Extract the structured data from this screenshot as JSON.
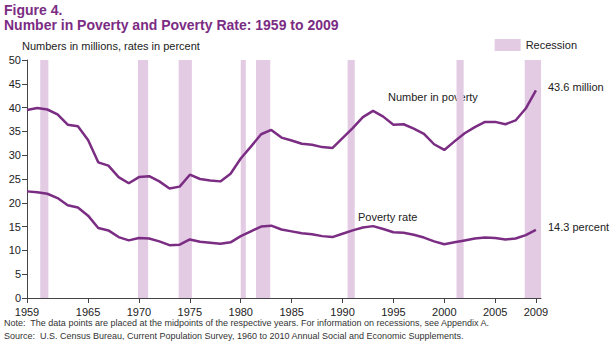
{
  "chart_data": {
    "type": "line",
    "title": "Figure 4.",
    "subtitle": "Number in Poverty and Poverty Rate: 1959 to 2009",
    "y_label": "Numbers in millions, rates in percent",
    "x": [
      1959,
      1960,
      1961,
      1962,
      1963,
      1964,
      1965,
      1966,
      1967,
      1968,
      1969,
      1970,
      1971,
      1972,
      1973,
      1974,
      1975,
      1976,
      1977,
      1978,
      1979,
      1980,
      1981,
      1982,
      1983,
      1984,
      1985,
      1986,
      1987,
      1988,
      1989,
      1990,
      1991,
      1992,
      1993,
      1994,
      1995,
      1996,
      1997,
      1998,
      1999,
      2000,
      2001,
      2002,
      2003,
      2004,
      2005,
      2006,
      2007,
      2008,
      2009
    ],
    "series": [
      {
        "name": "Number in poverty",
        "color": "#7b2c83",
        "values": [
          39.5,
          39.9,
          39.6,
          38.6,
          36.4,
          36.1,
          33.2,
          28.5,
          27.8,
          25.4,
          24.1,
          25.4,
          25.6,
          24.5,
          23.0,
          23.4,
          25.9,
          25.0,
          24.7,
          24.5,
          26.1,
          29.3,
          31.8,
          34.4,
          35.3,
          33.7,
          33.1,
          32.4,
          32.2,
          31.7,
          31.5,
          33.6,
          35.7,
          38.0,
          39.3,
          38.1,
          36.4,
          36.5,
          35.6,
          34.5,
          32.3,
          31.1,
          32.9,
          34.6,
          35.9,
          37.0,
          37.0,
          36.5,
          37.3,
          39.8,
          43.6
        ]
      },
      {
        "name": "Poverty rate",
        "color": "#7b2c83",
        "values": [
          22.4,
          22.2,
          21.9,
          21.0,
          19.5,
          19.0,
          17.3,
          14.7,
          14.2,
          12.8,
          12.1,
          12.6,
          12.5,
          11.9,
          11.1,
          11.2,
          12.3,
          11.8,
          11.6,
          11.4,
          11.7,
          13.0,
          14.0,
          15.0,
          15.2,
          14.4,
          14.0,
          13.6,
          13.4,
          13.0,
          12.8,
          13.5,
          14.2,
          14.8,
          15.1,
          14.5,
          13.8,
          13.7,
          13.3,
          12.7,
          11.9,
          11.3,
          11.7,
          12.1,
          12.5,
          12.7,
          12.6,
          12.3,
          12.5,
          13.2,
          14.3
        ]
      }
    ],
    "recessions": {
      "name": "Recession",
      "color": "#e3cbe4",
      "ranges": [
        [
          1960.3,
          1961.1
        ],
        [
          1969.9,
          1970.9
        ],
        [
          1973.9,
          1975.2
        ],
        [
          1980.0,
          1980.5
        ],
        [
          1981.5,
          1982.9
        ],
        [
          1990.5,
          1991.2
        ],
        [
          2001.2,
          2001.9
        ],
        [
          2007.9,
          2009.5
        ]
      ]
    },
    "annotations": [
      "Number in poverty",
      "Poverty rate",
      "43.6 million",
      "14.3 percent"
    ],
    "note": "Note:  The data points are placed at the midpoints of the respective years. For information on recessions, see Appendix A.",
    "source": "Source:  U.S. Census Bureau, Current Population Survey, 1960 to 2010 Annual Social and Economic Supplements.",
    "xlim": [
      1959,
      2009.5
    ],
    "xticks": [
      1959,
      1965,
      1970,
      1975,
      1980,
      1985,
      1990,
      1995,
      2000,
      2005,
      2009
    ],
    "ylim": [
      0,
      50
    ],
    "yticks": [
      0,
      5,
      10,
      15,
      20,
      25,
      30,
      35,
      40,
      45,
      50
    ],
    "grid": false,
    "legend": "top-right"
  }
}
